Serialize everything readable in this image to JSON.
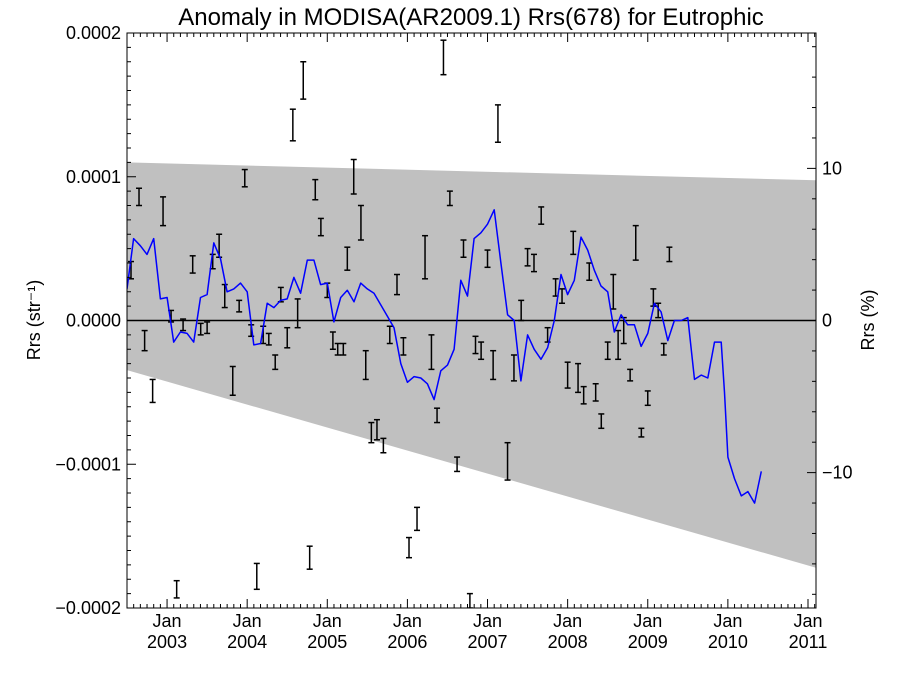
{
  "chart_data": {
    "type": "line",
    "title": "Anomaly in MODISA(AR2009.1) Rrs(678) for Eutrophic",
    "ylabel_left": "Rrs (str⁻¹)",
    "ylabel_right": "Rrs (%)",
    "x_range": [
      2002.5,
      2011.1
    ],
    "ylim_left": [
      -0.0002,
      0.0002
    ],
    "ylim_right": [
      -18.9,
      18.9
    ],
    "x_ticks": [
      {
        "x": 2003.0,
        "month": "Jan",
        "year": "2003"
      },
      {
        "x": 2004.0,
        "month": "Jan",
        "year": "2004"
      },
      {
        "x": 2005.0,
        "month": "Jan",
        "year": "2005"
      },
      {
        "x": 2006.0,
        "month": "Jan",
        "year": "2006"
      },
      {
        "x": 2007.0,
        "month": "Jan",
        "year": "2007"
      },
      {
        "x": 2008.0,
        "month": "Jan",
        "year": "2008"
      },
      {
        "x": 2009.0,
        "month": "Jan",
        "year": "2009"
      },
      {
        "x": 2010.0,
        "month": "Jan",
        "year": "2010"
      },
      {
        "x": 2011.0,
        "month": "Jan",
        "year": "2011"
      }
    ],
    "y_ticks_left": [
      {
        "v": 0.0002,
        "label": "0.0002"
      },
      {
        "v": 0.0001,
        "label": "0.0001"
      },
      {
        "v": 0.0,
        "label": "0.0000"
      },
      {
        "v": -0.0001,
        "label": "−0.0001"
      },
      {
        "v": -0.0002,
        "label": "−0.0002"
      }
    ],
    "y_ticks_right": [
      {
        "v": 10,
        "label": "10"
      },
      {
        "v": 0,
        "label": "0"
      },
      {
        "v": -10,
        "label": "−10"
      }
    ],
    "reference_line": 0.0,
    "band": {
      "color": "#c0c0c0",
      "upper": [
        [
          2002.5,
          0.00011
        ],
        [
          2011.1,
          9.75e-05
        ]
      ],
      "lower": [
        [
          2002.5,
          -3.45e-05
        ],
        [
          2011.1,
          -0.000172
        ]
      ]
    },
    "series": [
      {
        "color": "#0000ff",
        "points": [
          [
            2002.5,
            2.2e-05
          ],
          [
            2002.583,
            5.7e-05
          ],
          [
            2002.667,
            5.2e-05
          ],
          [
            2002.75,
            4.6e-05
          ],
          [
            2002.833,
            5.7e-05
          ],
          [
            2002.917,
            1.5e-05
          ],
          [
            2003.0,
            1.6e-05
          ],
          [
            2003.083,
            -1.5e-05
          ],
          [
            2003.167,
            -8e-06
          ],
          [
            2003.25,
            -9e-06
          ],
          [
            2003.333,
            -1.5e-05
          ],
          [
            2003.417,
            1.6e-05
          ],
          [
            2003.5,
            1.8e-05
          ],
          [
            2003.583,
            5.4e-05
          ],
          [
            2003.667,
            4.3e-05
          ],
          [
            2003.75,
            2e-05
          ],
          [
            2003.833,
            2.2e-05
          ],
          [
            2003.917,
            2.6e-05
          ],
          [
            2004.0,
            2e-05
          ],
          [
            2004.083,
            -1.7e-05
          ],
          [
            2004.167,
            -1.6e-05
          ],
          [
            2004.25,
            1.2e-05
          ],
          [
            2004.333,
            9e-06
          ],
          [
            2004.417,
            1.4e-05
          ],
          [
            2004.5,
            1.5e-05
          ],
          [
            2004.583,
            3e-05
          ],
          [
            2004.667,
            1.9e-05
          ],
          [
            2004.75,
            4.2e-05
          ],
          [
            2004.833,
            4.2e-05
          ],
          [
            2004.917,
            2.5e-05
          ],
          [
            2005.0,
            2.6e-05
          ],
          [
            2005.083,
            -1e-06
          ],
          [
            2005.167,
            1.6e-05
          ],
          [
            2005.25,
            2.1e-05
          ],
          [
            2005.333,
            1.3e-05
          ],
          [
            2005.417,
            2.6e-05
          ],
          [
            2005.5,
            2.2e-05
          ],
          [
            2005.583,
            1.9e-05
          ],
          [
            2005.667,
            1.1e-05
          ],
          [
            2005.75,
            3e-06
          ],
          [
            2005.833,
            -5e-06
          ],
          [
            2005.917,
            -3e-05
          ],
          [
            2006.0,
            -4.3e-05
          ],
          [
            2006.083,
            -3.9e-05
          ],
          [
            2006.167,
            -4e-05
          ],
          [
            2006.25,
            -4.4e-05
          ],
          [
            2006.333,
            -5.5e-05
          ],
          [
            2006.417,
            -3.5e-05
          ],
          [
            2006.5,
            -3.1e-05
          ],
          [
            2006.583,
            -2e-05
          ],
          [
            2006.667,
            2.8e-05
          ],
          [
            2006.75,
            1.7e-05
          ],
          [
            2006.833,
            5.7e-05
          ],
          [
            2006.917,
            6.1e-05
          ],
          [
            2007.0,
            6.7e-05
          ],
          [
            2007.083,
            7.7e-05
          ],
          [
            2007.167,
            4e-05
          ],
          [
            2007.25,
            4e-06
          ],
          [
            2007.333,
            0.0
          ],
          [
            2007.417,
            -4.2e-05
          ],
          [
            2007.5,
            -1e-05
          ],
          [
            2007.583,
            -2e-05
          ],
          [
            2007.667,
            -2.7e-05
          ],
          [
            2007.75,
            -1.9e-05
          ],
          [
            2007.833,
            0.0
          ],
          [
            2007.917,
            3.2e-05
          ],
          [
            2008.0,
            1.8e-05
          ],
          [
            2008.083,
            2.8e-05
          ],
          [
            2008.167,
            5.8e-05
          ],
          [
            2008.25,
            4.9e-05
          ],
          [
            2008.333,
            3.5e-05
          ],
          [
            2008.417,
            2.4e-05
          ],
          [
            2008.5,
            2e-05
          ],
          [
            2008.583,
            -8e-06
          ],
          [
            2008.667,
            4e-06
          ],
          [
            2008.75,
            -3e-06
          ],
          [
            2008.833,
            -3e-06
          ],
          [
            2008.917,
            -1.8e-05
          ],
          [
            2009.0,
            -9e-06
          ],
          [
            2009.083,
            1.2e-05
          ],
          [
            2009.167,
            6e-06
          ],
          [
            2009.25,
            -1.4e-05
          ],
          [
            2009.333,
            0.0
          ],
          [
            2009.417,
            0.0
          ],
          [
            2009.5,
            2e-06
          ],
          [
            2009.583,
            -4.1e-05
          ],
          [
            2009.667,
            -3.8e-05
          ],
          [
            2009.75,
            -4e-05
          ],
          [
            2009.833,
            -1.5e-05
          ],
          [
            2009.917,
            -1.5e-05
          ],
          [
            2009.958,
            -5e-05
          ],
          [
            2010.0,
            -9.5e-05
          ],
          [
            2010.083,
            -0.00011
          ],
          [
            2010.167,
            -0.000122
          ],
          [
            2010.25,
            -0.000119
          ],
          [
            2010.333,
            -0.000127
          ],
          [
            2010.417,
            -0.000105
          ]
        ]
      }
    ],
    "error_bars": [
      [
        2002.55,
        3.5e-05,
        6e-06
      ],
      [
        2002.65,
        8.6e-05,
        6e-06
      ],
      [
        2002.72,
        -1.4e-05,
        7e-06
      ],
      [
        2002.82,
        -4.9e-05,
        8e-06
      ],
      [
        2002.95,
        7.6e-05,
        1e-05
      ],
      [
        2003.05,
        3e-06,
        4e-06
      ],
      [
        2003.12,
        -0.000187,
        6e-06
      ],
      [
        2003.2,
        -3e-06,
        4e-06
      ],
      [
        2003.32,
        3.9e-05,
        6e-06
      ],
      [
        2003.42,
        -6e-06,
        4e-06
      ],
      [
        2003.5,
        -5e-06,
        4e-06
      ],
      [
        2003.57,
        4.1e-05,
        5e-06
      ],
      [
        2003.65,
        5.2e-05,
        8e-06
      ],
      [
        2003.72,
        1.7e-05,
        8e-06
      ],
      [
        2003.82,
        -4.2e-05,
        1e-05
      ],
      [
        2003.9,
        1e-05,
        4e-06
      ],
      [
        2003.97,
        9.9e-05,
        6e-06
      ],
      [
        2004.05,
        -7e-06,
        4e-06
      ],
      [
        2004.12,
        -0.000178,
        9e-06
      ],
      [
        2004.2,
        -1e-05,
        6e-06
      ],
      [
        2004.27,
        -1.3e-05,
        4e-06
      ],
      [
        2004.35,
        -2.9e-05,
        5e-06
      ],
      [
        2004.42,
        1.8e-05,
        5e-06
      ],
      [
        2004.5,
        -1.2e-05,
        7e-06
      ],
      [
        2004.57,
        0.000136,
        1.1e-05
      ],
      [
        2004.63,
        5e-06,
        1e-05
      ],
      [
        2004.7,
        0.000167,
        1.3e-05
      ],
      [
        2004.78,
        -0.000165,
        8e-06
      ],
      [
        2004.85,
        9.1e-05,
        7e-06
      ],
      [
        2004.92,
        6.5e-05,
        6e-06
      ],
      [
        2005.0,
        2.1e-05,
        5e-06
      ],
      [
        2005.07,
        -1.4e-05,
        6e-06
      ],
      [
        2005.13,
        -2e-05,
        4e-06
      ],
      [
        2005.2,
        -2e-05,
        4e-06
      ],
      [
        2005.25,
        4.3e-05,
        8e-06
      ],
      [
        2005.33,
        0.0001,
        1.2e-05
      ],
      [
        2005.42,
        6.8e-05,
        1.2e-05
      ],
      [
        2005.48,
        -3.1e-05,
        1e-05
      ],
      [
        2005.55,
        -7.8e-05,
        7e-06
      ],
      [
        2005.62,
        -7.6e-05,
        7e-06
      ],
      [
        2005.7,
        -8.7e-05,
        5e-06
      ],
      [
        2005.78,
        -1e-05,
        6e-06
      ],
      [
        2005.87,
        2.5e-05,
        7e-06
      ],
      [
        2005.95,
        -1.8e-05,
        6e-06
      ],
      [
        2006.02,
        -0.000158,
        7e-06
      ],
      [
        2006.12,
        -0.000138,
        8e-06
      ],
      [
        2006.22,
        4.4e-05,
        1.5e-05
      ],
      [
        2006.3,
        -2.2e-05,
        1.2e-05
      ],
      [
        2006.37,
        -6.6e-05,
        5e-06
      ],
      [
        2006.45,
        0.000183,
        1.2e-05
      ],
      [
        2006.53,
        8.5e-05,
        5e-06
      ],
      [
        2006.62,
        -0.0001,
        5e-06
      ],
      [
        2006.7,
        5e-05,
        6e-06
      ],
      [
        2006.78,
        -0.000195,
        5e-06
      ],
      [
        2006.85,
        -1.7e-05,
        6e-06
      ],
      [
        2006.92,
        -2.1e-05,
        6e-06
      ],
      [
        2007.0,
        4.3e-05,
        6e-06
      ],
      [
        2007.07,
        -3.1e-05,
        1e-05
      ],
      [
        2007.13,
        0.000137,
        1.3e-05
      ],
      [
        2007.25,
        -9.8e-05,
        1.3e-05
      ],
      [
        2007.33,
        -3.3e-05,
        9e-06
      ],
      [
        2007.42,
        7e-06,
        7e-06
      ],
      [
        2007.5,
        4.4e-05,
        6e-06
      ],
      [
        2007.58,
        4e-05,
        6e-06
      ],
      [
        2007.67,
        7.3e-05,
        6e-06
      ],
      [
        2007.75,
        -1e-05,
        5e-06
      ],
      [
        2007.85,
        2.3e-05,
        6e-06
      ],
      [
        2007.93,
        1.7e-05,
        5e-06
      ],
      [
        2008.0,
        -3.8e-05,
        9e-06
      ],
      [
        2008.07,
        5.4e-05,
        8e-06
      ],
      [
        2008.13,
        -4e-05,
        1e-05
      ],
      [
        2008.2,
        -5.2e-05,
        6e-06
      ],
      [
        2008.27,
        3.4e-05,
        6e-06
      ],
      [
        2008.35,
        -5e-05,
        6e-06
      ],
      [
        2008.42,
        -7e-05,
        5e-06
      ],
      [
        2008.5,
        -2.1e-05,
        6e-06
      ],
      [
        2008.57,
        2e-05,
        1.2e-05
      ],
      [
        2008.63,
        -1.7e-05,
        1e-05
      ],
      [
        2008.7,
        -7e-06,
        9e-06
      ],
      [
        2008.78,
        -3.8e-05,
        4e-06
      ],
      [
        2008.85,
        5.4e-05,
        1.2e-05
      ],
      [
        2008.92,
        -7.8e-05,
        3e-06
      ],
      [
        2009.0,
        -5.4e-05,
        5e-06
      ],
      [
        2009.07,
        1.6e-05,
        6e-06
      ],
      [
        2009.13,
        7e-06,
        5e-06
      ],
      [
        2009.2,
        -2e-05,
        4e-06
      ],
      [
        2009.27,
        4.6e-05,
        5e-06
      ]
    ]
  }
}
